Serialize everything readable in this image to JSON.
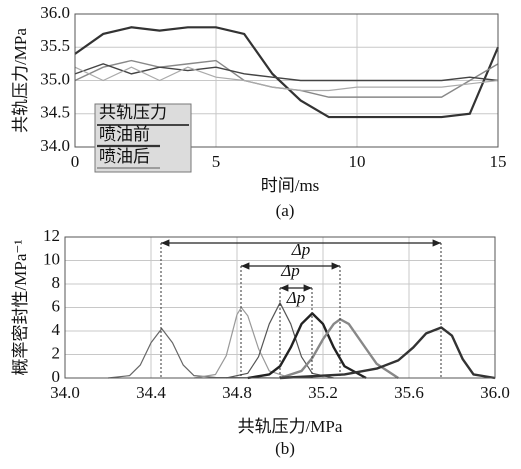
{
  "chart_data": [
    {
      "type": "line",
      "caption": "(a)",
      "xlabel": "时间/ms",
      "ylabel": "共轨压力/MPa",
      "legend_title": "共轨压力",
      "x": [
        0,
        1,
        2,
        3,
        4,
        5,
        6,
        7,
        8,
        9,
        10,
        11,
        12,
        13,
        14,
        15
      ],
      "xlim": [
        0,
        15
      ],
      "xticks": [
        0,
        5,
        10,
        15
      ],
      "ylim": [
        34,
        36
      ],
      "yticks": [
        {
          "value": 34,
          "label": "34.0"
        },
        {
          "value": 34.5,
          "label": "34.5"
        },
        {
          "value": 35,
          "label": "35.0"
        },
        {
          "value": 35.5,
          "label": "35.5"
        },
        {
          "value": 36,
          "label": "36.0"
        }
      ],
      "grid": true,
      "series": [
        {
          "name": "喷油前",
          "color": "#333333",
          "width": 2.2,
          "values": [
            35.4,
            35.7,
            35.8,
            35.75,
            35.8,
            35.8,
            35.7,
            35.1,
            34.7,
            34.45,
            34.45,
            34.45,
            34.45,
            34.45,
            34.5,
            35.5
          ]
        },
        {
          "name": "喷油后",
          "color": "#888888",
          "width": 1.4,
          "values": [
            35.0,
            35.2,
            35.3,
            35.2,
            35.25,
            35.3,
            35.0,
            34.9,
            34.85,
            34.75,
            34.75,
            34.75,
            34.75,
            34.75,
            35.0,
            35.25
          ]
        },
        {
          "color": "#444444",
          "width": 1.4,
          "values": [
            35.1,
            35.25,
            35.1,
            35.2,
            35.15,
            35.2,
            35.1,
            35.05,
            35.0,
            35.0,
            35.0,
            35.0,
            35.0,
            35.0,
            35.05,
            35.0
          ]
        },
        {
          "color": "#aaaaaa",
          "width": 1.2,
          "values": [
            35.2,
            35.0,
            35.2,
            35.0,
            35.2,
            35.05,
            35.0,
            34.9,
            34.85,
            34.85,
            34.9,
            34.9,
            34.9,
            34.9,
            34.95,
            35.0
          ]
        }
      ]
    },
    {
      "type": "density",
      "caption": "(b)",
      "xlabel": "共轨压力/MPa",
      "ylabel": "概率密封性/MPa⁻¹",
      "xlim": [
        34,
        36
      ],
      "xticks": [
        {
          "value": 34,
          "label": "34.0"
        },
        {
          "value": 34.4,
          "label": "34.4"
        },
        {
          "value": 34.8,
          "label": "34.8"
        },
        {
          "value": 35.2,
          "label": "35.2"
        },
        {
          "value": 35.6,
          "label": "35.6"
        },
        {
          "value": 36,
          "label": "36.0"
        }
      ],
      "ylim": [
        0,
        12
      ],
      "yticks": [
        0,
        2,
        4,
        6,
        8,
        10,
        12
      ],
      "grid": true,
      "annotations": [
        "Δp",
        "Δp",
        "Δp"
      ],
      "series": [
        {
          "color": "#666666",
          "width": 1.2,
          "x": [
            34.2,
            34.3,
            34.35,
            34.4,
            34.45,
            34.5,
            34.55,
            34.6,
            34.7,
            35.0
          ],
          "values": [
            0,
            0.2,
            1.1,
            3.0,
            4.2,
            3.0,
            1.1,
            0.2,
            0.05,
            0
          ]
        },
        {
          "color": "#999999",
          "width": 1.2,
          "x": [
            34.6,
            34.7,
            34.75,
            34.8,
            34.82,
            34.85,
            34.9,
            34.95,
            35.05
          ],
          "values": [
            0,
            0.3,
            1.9,
            5.4,
            6.0,
            5.3,
            2.5,
            0.6,
            0
          ]
        },
        {
          "color": "#555555",
          "width": 1.2,
          "x": [
            34.75,
            34.85,
            34.9,
            34.95,
            35.0,
            35.05,
            35.1,
            35.15,
            35.25
          ],
          "values": [
            0,
            0.4,
            1.8,
            4.6,
            6.4,
            4.6,
            1.8,
            0.4,
            0
          ]
        },
        {
          "color": "#222222",
          "width": 2.4,
          "x": [
            34.85,
            34.95,
            35.0,
            35.05,
            35.1,
            35.15,
            35.2,
            35.25,
            35.3,
            35.4
          ],
          "values": [
            0,
            0.3,
            1.0,
            2.6,
            4.6,
            5.5,
            4.6,
            2.6,
            1.0,
            0
          ]
        },
        {
          "color": "#888888",
          "width": 2.4,
          "x": [
            35.0,
            35.1,
            35.15,
            35.2,
            35.25,
            35.28,
            35.32,
            35.4,
            35.45,
            35.55
          ],
          "values": [
            0,
            0.6,
            1.7,
            3.3,
            4.6,
            5.0,
            4.6,
            2.5,
            1.2,
            0
          ]
        },
        {
          "color": "#333333",
          "width": 2.4,
          "x": [
            35.0,
            35.3,
            35.45,
            35.55,
            35.62,
            35.68,
            35.75,
            35.8,
            35.85,
            35.9,
            36.0
          ],
          "values": [
            0,
            0.3,
            0.8,
            1.5,
            2.6,
            3.8,
            4.3,
            3.6,
            1.6,
            0.3,
            0
          ]
        }
      ]
    }
  ]
}
